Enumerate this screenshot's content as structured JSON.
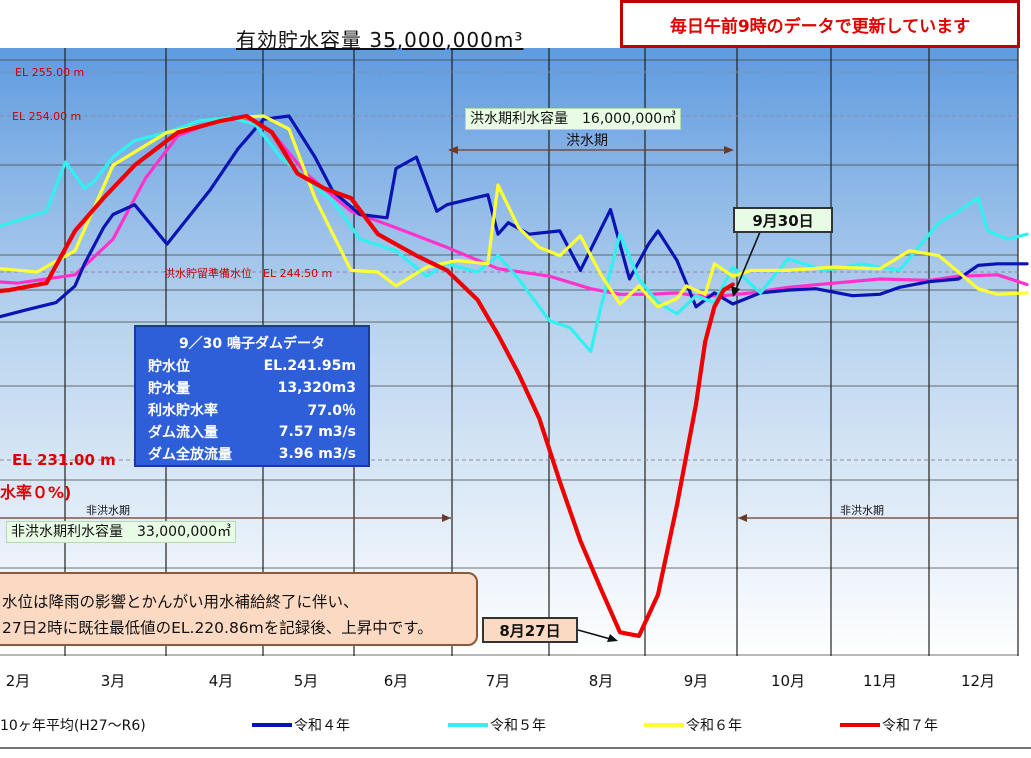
{
  "title": "有効貯水容量 35,000,000m³",
  "notice": "毎日午前9時のデータで更新しています",
  "chart_data": {
    "type": "line",
    "title": "有効貯水容量 35,000,000m³",
    "categories": [
      "2月",
      "3月",
      "4月",
      "5月",
      "6月",
      "7月",
      "8月",
      "9月",
      "10月",
      "11月",
      "12月"
    ],
    "series_colors": {
      "10ヶ年平均(H27～R6)": "#ff33cc",
      "令和４年": "#0a14b4",
      "令和５年": "#33f0f0",
      "令和６年": "#ffff33",
      "令和７年": "#ee0000"
    },
    "series": [
      {
        "name": "10ヶ年平均(H27～R6)",
        "x": [
          1.0,
          1.5,
          2.0,
          2.6,
          3.0,
          3.3,
          3.6,
          4.0,
          4.3,
          4.6,
          5.0,
          5.5,
          6.0,
          6.5,
          7.0,
          7.5,
          7.9,
          8.2,
          8.5,
          8.8,
          9.0,
          9.3,
          9.6,
          10.0,
          10.5,
          11.0,
          11.5,
          11.8,
          12.2,
          12.5
        ],
        "y": [
          244.3,
          243.9,
          243.7,
          244.3,
          246.5,
          250.2,
          252.8,
          253.8,
          253.8,
          253.0,
          250.5,
          248.2,
          247.2,
          246.0,
          244.7,
          244.2,
          243.3,
          242.9,
          242.9,
          243.0,
          242.8,
          242.8,
          243.0,
          243.4,
          243.7,
          244.0,
          243.9,
          244.2,
          244.3,
          243.6
        ]
      },
      {
        "name": "令和４年",
        "x": [
          1.0,
          1.4,
          1.8,
          2.1,
          2.4,
          2.6,
          2.7,
          2.9,
          3.0,
          3.2,
          3.5,
          3.9,
          4.2,
          4.5,
          4.8,
          5.1,
          5.3,
          5.6,
          5.9,
          6.0,
          6.2,
          6.4,
          6.5,
          6.9,
          7.0,
          7.1,
          7.3,
          7.6,
          7.8,
          8.1,
          8.3,
          8.5,
          8.6,
          8.8,
          9.0,
          9.2,
          9.4,
          9.7,
          10.0,
          10.3,
          10.7,
          11.0,
          11.2,
          11.5,
          11.8,
          12.0,
          12.2,
          12.5
        ],
        "y": [
          241.5,
          241.5,
          241.3,
          241.8,
          242.3,
          243.5,
          245.0,
          247.2,
          248.0,
          248.6,
          246.2,
          249.5,
          252.0,
          253.8,
          254.0,
          251.5,
          249.4,
          248.0,
          247.8,
          250.8,
          251.5,
          248.2,
          248.6,
          249.2,
          246.8,
          247.5,
          246.8,
          247.0,
          244.6,
          248.3,
          244.0,
          246.2,
          247.0,
          245.2,
          242.0,
          243.0,
          242.2,
          243.0,
          243.2,
          243.3,
          242.8,
          242.9,
          243.4,
          243.8,
          244.0,
          244.9,
          245.0,
          245.0
        ]
      },
      {
        "name": "令和５年",
        "x": [
          1.0,
          1.4,
          1.8,
          2.3,
          2.5,
          2.7,
          2.8,
          3.0,
          3.2,
          3.5,
          3.8,
          4.1,
          4.4,
          4.7,
          5.0,
          5.3,
          5.6,
          6.0,
          6.3,
          6.5,
          6.8,
          7.0,
          7.2,
          7.5,
          7.7,
          7.9,
          8.0,
          8.2,
          8.4,
          8.6,
          8.8,
          9.0,
          9.2,
          9.4,
          9.7,
          10.0,
          10.4,
          10.8,
          11.2,
          11.6,
          11.8,
          12.0,
          12.1,
          12.3,
          12.5
        ],
        "y": [
          247.5,
          247.0,
          247.3,
          248.2,
          251.2,
          249.6,
          250.0,
          251.5,
          252.5,
          253.0,
          253.7,
          253.9,
          253.5,
          251.5,
          250.2,
          248.8,
          246.5,
          245.8,
          244.2,
          245.0,
          244.5,
          245.5,
          244.0,
          241.0,
          240.5,
          238.8,
          242.0,
          246.8,
          244.0,
          242.3,
          241.5,
          242.8,
          242.3,
          244.8,
          243.0,
          245.3,
          244.6,
          245.0,
          244.6,
          247.5,
          248.2,
          249.0,
          247.0,
          246.5,
          246.8
        ]
      },
      {
        "name": "令和６年",
        "x": [
          1.0,
          1.4,
          1.8,
          2.2,
          2.6,
          3.0,
          3.5,
          3.9,
          4.2,
          4.5,
          4.8,
          5.1,
          5.5,
          5.8,
          6.0,
          6.3,
          6.6,
          6.9,
          7.0,
          7.2,
          7.4,
          7.6,
          7.8,
          8.0,
          8.2,
          8.4,
          8.6,
          8.8,
          8.9,
          9.1,
          9.2,
          9.4,
          9.6,
          10.0,
          10.5,
          11.0,
          11.3,
          11.6,
          11.8,
          12.0,
          12.2,
          12.5
        ],
        "y": [
          244.5,
          244.0,
          244.7,
          244.5,
          245.8,
          251.0,
          253.0,
          253.5,
          253.9,
          254.0,
          253.2,
          249.0,
          244.6,
          244.5,
          243.5,
          244.8,
          245.2,
          245.0,
          249.8,
          247.2,
          246.0,
          245.5,
          246.7,
          244.3,
          242.2,
          243.5,
          242.0,
          242.6,
          243.5,
          242.9,
          245.0,
          244.2,
          244.6,
          244.6,
          244.8,
          244.7,
          245.8,
          245.5,
          244.5,
          243.3,
          242.9,
          243.0
        ]
      },
      {
        "name": "令和７年",
        "x": [
          1.0,
          1.5,
          1.9,
          2.3,
          2.6,
          2.9,
          3.2,
          3.6,
          4.0,
          4.3,
          4.6,
          4.9,
          5.2,
          5.5,
          5.8,
          6.2,
          6.5,
          6.8,
          7.0,
          7.2,
          7.4,
          7.6,
          7.8,
          8.0,
          8.2,
          8.4,
          8.6,
          8.8,
          9.0,
          9.1,
          9.2,
          9.3,
          9.4
        ],
        "y": [
          243.0,
          243.0,
          243.2,
          243.7,
          247.0,
          249.0,
          251.0,
          253.0,
          253.7,
          254.0,
          253.0,
          250.5,
          249.6,
          249.0,
          246.8,
          245.5,
          244.6,
          242.5,
          240.0,
          237.2,
          234.0,
          229.8,
          226.5,
          223.8,
          221.4,
          221.2,
          223.5,
          228.5,
          235.0,
          239.5,
          242.0,
          243.2,
          243.6
        ]
      }
    ],
    "annotations": {
      "el255": "EL 255.00 m",
      "el254": "EL 254.00 m",
      "el2445": "洪水貯留準備水位　EL 244.50 m",
      "el231": "EL 231.00 m",
      "flood_capacity": "洪水期利水容量　16,000,000㎥",
      "flood_period": "洪水期",
      "nonflood_period_left": "非洪水期",
      "nonflood_period_right": "非洪水期",
      "nonflood_capacity": "非洪水期利水容量　33,000,000㎥",
      "rate_zero": "水率０%)",
      "callout_0930": "9月30日",
      "callout_0827": "8月27日"
    }
  },
  "info_box": {
    "title": "9／30 鳴子ダムデータ",
    "rows": [
      {
        "label": "貯水位",
        "value": "EL.241.95m"
      },
      {
        "label": "貯水量",
        "value": "13,320m3"
      },
      {
        "label": "利水貯水率",
        "value": "77.0％"
      },
      {
        "label": "ダム流入量",
        "value": "7.57 m3/s"
      },
      {
        "label": "ダム全放流量",
        "value": "3.96 m3/s"
      }
    ]
  },
  "comment": {
    "line1": "水位は降雨の影響とかんがい用水補給終了に伴い、",
    "line2": "27日2時に既往最低値のEL.220.86mを記録後、上昇中です。"
  },
  "legend": [
    "10ヶ年平均(H27～R6)",
    "令和４年",
    "令和５年",
    "令和６年",
    "令和７年"
  ]
}
